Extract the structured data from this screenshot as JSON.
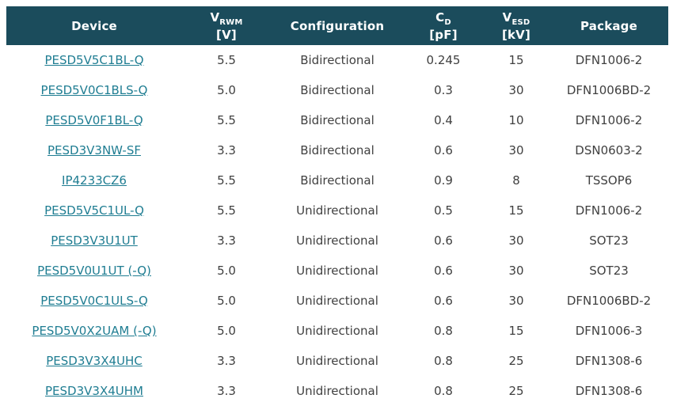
{
  "colors": {
    "header_bg": "#1b4c5c",
    "header_text": "#ffffff",
    "link": "#1f7d92",
    "cell_text": "#404040"
  },
  "table": {
    "header": {
      "device": "Device",
      "vrwm": {
        "symbol": "V",
        "sub": "RWM",
        "unit": "[V]"
      },
      "configuration": "Configuration",
      "cd": {
        "symbol": "C",
        "sub": "D",
        "unit": "[pF]"
      },
      "vesd": {
        "symbol": "V",
        "sub": "ESD",
        "unit": "[kV]"
      },
      "package": "Package"
    },
    "rows": [
      {
        "device": "PESD5V5C1BL-Q",
        "vrwm": "5.5",
        "configuration": "Bidirectional",
        "cd": "0.245",
        "vesd": "15",
        "package": "DFN1006-2"
      },
      {
        "device": "PESD5V0C1BLS-Q",
        "vrwm": "5.0",
        "configuration": "Bidirectional",
        "cd": "0.3",
        "vesd": "30",
        "package": "DFN1006BD-2"
      },
      {
        "device": "PESD5V0F1BL-Q",
        "vrwm": "5.5",
        "configuration": "Bidirectional",
        "cd": "0.4",
        "vesd": "10",
        "package": "DFN1006-2"
      },
      {
        "device": "PESD3V3NW-SF",
        "vrwm": "3.3",
        "configuration": "Bidirectional",
        "cd": "0.6",
        "vesd": "30",
        "package": "DSN0603-2"
      },
      {
        "device": "IP4233CZ6",
        "vrwm": "5.5",
        "configuration": "Bidirectional",
        "cd": "0.9",
        "vesd": "8",
        "package": "TSSOP6"
      },
      {
        "device": "PESD5V5C1UL-Q",
        "vrwm": "5.5",
        "configuration": "Unidirectional",
        "cd": "0.5",
        "vesd": "15",
        "package": "DFN1006-2"
      },
      {
        "device": "PESD3V3U1UT",
        "vrwm": "3.3",
        "configuration": "Unidirectional",
        "cd": "0.6",
        "vesd": "30",
        "package": "SOT23"
      },
      {
        "device": "PESD5V0U1UT (-Q)",
        "vrwm": "5.0",
        "configuration": "Unidirectional",
        "cd": "0.6",
        "vesd": "30",
        "package": "SOT23"
      },
      {
        "device": "PESD5V0C1ULS-Q",
        "vrwm": "5.0",
        "configuration": "Unidirectional",
        "cd": "0.6",
        "vesd": "30",
        "package": "DFN1006BD-2"
      },
      {
        "device": "PESD5V0X2UAM (-Q)",
        "vrwm": "5.0",
        "configuration": "Unidirectional",
        "cd": "0.8",
        "vesd": "15",
        "package": "DFN1006-3"
      },
      {
        "device": "PESD3V3X4UHC",
        "vrwm": "3.3",
        "configuration": "Unidirectional",
        "cd": "0.8",
        "vesd": "25",
        "package": "DFN1308-6"
      },
      {
        "device": "PESD3V3X4UHM",
        "vrwm": "3.3",
        "configuration": "Unidirectional",
        "cd": "0.8",
        "vesd": "25",
        "package": "DFN1308-6"
      }
    ]
  }
}
